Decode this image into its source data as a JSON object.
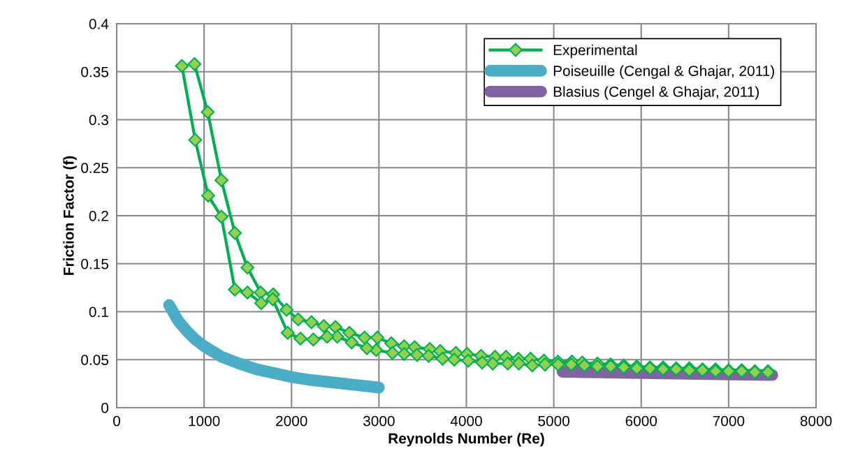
{
  "chart_data": {
    "type": "line",
    "xlabel": "Reynolds Number (Re)",
    "ylabel": "Friction Factor (f)",
    "xlim": [
      0,
      8000
    ],
    "xticks": [
      0,
      1000,
      2000,
      3000,
      4000,
      5000,
      6000,
      7000,
      8000
    ],
    "ylim": [
      0,
      0.4
    ],
    "yticks": [
      0,
      0.05,
      0.1,
      0.15,
      0.2,
      0.25,
      0.3,
      0.35,
      0.4
    ],
    "grid": true,
    "legend": "top right",
    "series": [
      {
        "name": "Experimental",
        "color": "#00b050",
        "marker": "diamond",
        "x": [
          890,
          1041,
          1198,
          1352,
          1496,
          1647,
          1790,
          1943,
          2076,
          2228,
          2369,
          2502,
          2662,
          2835,
          2982,
          3141,
          3288,
          3408,
          3581,
          3701,
          3880,
          4008,
          4168,
          4328,
          4453,
          4594,
          4735,
          4887,
          5047,
          5207,
          5326,
          5500,
          5650,
          5800,
          5950,
          6100,
          6250,
          6400,
          6550,
          6700,
          6850,
          7000,
          7150,
          7300,
          7450,
          7450,
          7300,
          7150,
          7000,
          6850,
          6700,
          6550,
          6400,
          6250,
          6100,
          5950,
          5800,
          5650,
          5500,
          5350,
          5200,
          5050,
          4900,
          4754,
          4600,
          4474,
          4301,
          4181,
          4021,
          3861,
          3728,
          3568,
          3435,
          3288,
          3155,
          2968,
          2862,
          2688,
          2523,
          2408,
          2249,
          2102,
          1956,
          1785,
          1653,
          1496,
          1352,
          1198,
          1046,
          898,
          746
        ],
        "values": [
          0.358,
          0.308,
          0.237,
          0.182,
          0.146,
          0.12,
          0.118,
          0.102,
          0.092,
          0.089,
          0.085,
          0.084,
          0.078,
          0.073,
          0.073,
          0.067,
          0.064,
          0.063,
          0.061,
          0.059,
          0.057,
          0.056,
          0.054,
          0.053,
          0.053,
          0.051,
          0.051,
          0.049,
          0.048,
          0.048,
          0.047,
          0.046,
          0.045,
          0.044,
          0.043,
          0.042,
          0.042,
          0.041,
          0.041,
          0.04,
          0.04,
          0.039,
          0.039,
          0.038,
          0.038,
          0.037,
          0.037,
          0.038,
          0.038,
          0.038,
          0.039,
          0.039,
          0.04,
          0.04,
          0.041,
          0.041,
          0.042,
          0.043,
          0.043,
          0.044,
          0.045,
          0.045,
          0.045,
          0.044,
          0.046,
          0.046,
          0.046,
          0.047,
          0.049,
          0.05,
          0.051,
          0.054,
          0.055,
          0.056,
          0.057,
          0.06,
          0.062,
          0.068,
          0.074,
          0.074,
          0.071,
          0.072,
          0.078,
          0.113,
          0.109,
          0.12,
          0.123,
          0.199,
          0.221,
          0.279,
          0.356
        ]
      },
      {
        "name": "Poiseuille (Cengal & Ghajar, 2011)",
        "color": "#4bacc6",
        "marker": "none",
        "x": [
          600,
          700,
          800,
          900,
          1000,
          1200,
          1400,
          1600,
          1800,
          2000,
          2200,
          2400,
          2600,
          2800,
          3000
        ],
        "values": [
          0.107,
          0.091,
          0.08,
          0.071,
          0.064,
          0.053,
          0.046,
          0.04,
          0.036,
          0.032,
          0.029,
          0.027,
          0.025,
          0.023,
          0.021
        ]
      },
      {
        "name": "Blasius (Cengel & Ghajar, 2011)",
        "color": "#8064a2",
        "marker": "none",
        "x": [
          5100,
          5500,
          6000,
          6500,
          7000,
          7500
        ],
        "values": [
          0.0374,
          0.0367,
          0.036,
          0.0354,
          0.0346,
          0.034
        ]
      }
    ]
  }
}
